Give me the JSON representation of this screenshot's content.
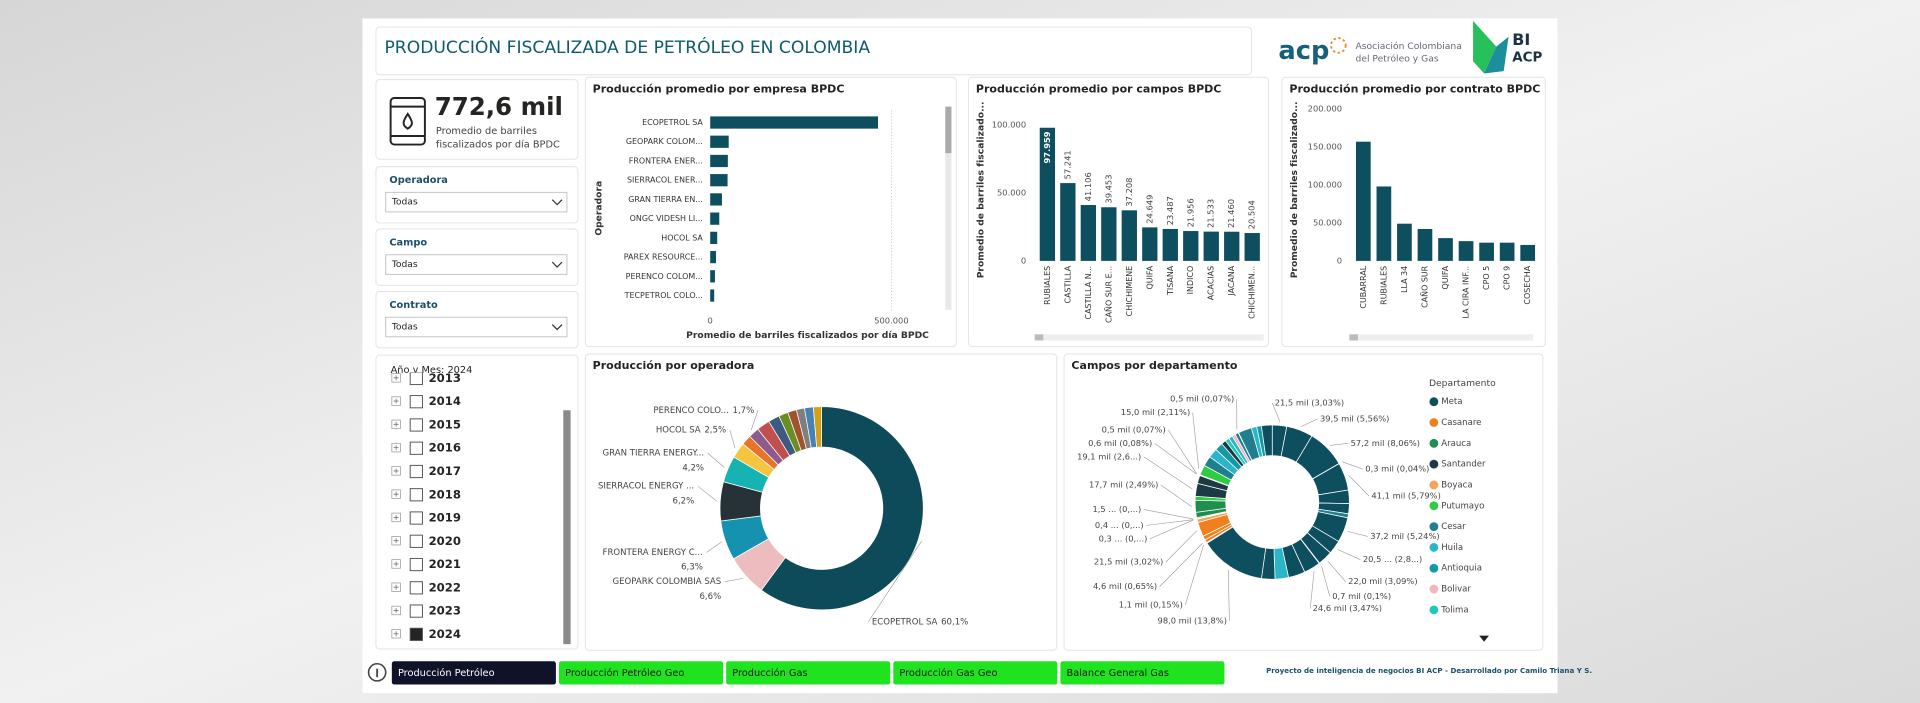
{
  "header": {
    "title": "PRODUCCIÓN FISCALIZADA DE PETRÓLEO EN COLOMBIA",
    "logo_acp": "acp",
    "logo_acp_name": [
      "Asociación Colombiana",
      "del Petróleo y Gas"
    ],
    "logo_bi": [
      "BI",
      "ACP"
    ]
  },
  "kpi": {
    "value": "772,6 mil",
    "label": [
      "Promedio de barriles",
      "fiscalizados por día BPDC"
    ]
  },
  "filters": [
    {
      "label": "Operadora",
      "value": "Todas"
    },
    {
      "label": "Campo",
      "value": "Todas"
    },
    {
      "label": "Contrato",
      "value": "Todas"
    }
  ],
  "year_slicer": {
    "title": "Año y Mes: 2024",
    "items": [
      {
        "label": "2013",
        "checked": false
      },
      {
        "label": "2014",
        "checked": false
      },
      {
        "label": "2015",
        "checked": false
      },
      {
        "label": "2016",
        "checked": false
      },
      {
        "label": "2017",
        "checked": false
      },
      {
        "label": "2018",
        "checked": false
      },
      {
        "label": "2019",
        "checked": false
      },
      {
        "label": "2020",
        "checked": false
      },
      {
        "label": "2021",
        "checked": false
      },
      {
        "label": "2022",
        "checked": false
      },
      {
        "label": "2023",
        "checked": false
      },
      {
        "label": "2024",
        "checked": true
      }
    ]
  },
  "chart_data": [
    {
      "type": "bar",
      "orientation": "horizontal",
      "title": "Producción promedio por empresa BPDC",
      "categories": [
        "ECOPETROL SA",
        "GEOPARK COLOM...",
        "FRONTERA ENER...",
        "SIERRACOL ENER...",
        "GRAN TIERRA EN...",
        "ONGC VIDESH LI...",
        "HOCOL SA",
        "PAREX RESOURCE...",
        "PERENCO COLOM...",
        "TECPETROL COLO..."
      ],
      "values": [
        463000,
        51000,
        48700,
        47900,
        32400,
        25000,
        19300,
        16000,
        13100,
        11000
      ],
      "color": "#0e4f5f",
      "xlim": [
        0,
        600000
      ],
      "xticks": [
        0,
        {
          "value": 500000,
          "label": "500.000"
        }
      ],
      "xlabel": "Promedio de barriles fiscalizados por día BPDC",
      "ylabel": "Operadora",
      "grid": true
    },
    {
      "type": "bar",
      "title": "Producción promedio por campos BPDC",
      "categories": [
        "RUBIALES",
        "CASTILLA",
        "CASTILLA N...",
        "CAÑO SUR E...",
        "CHICHIMENE",
        "QUIFA",
        "TISANA",
        "INDICO",
        "ACACIAS",
        "JACANA",
        "CHICHIMEN..."
      ],
      "values": [
        97959,
        57241,
        41106,
        39453,
        37208,
        24649,
        23487,
        21956,
        21533,
        21460,
        20504
      ],
      "value_labels": [
        "97.959",
        "57.241",
        "41.106",
        "39.453",
        "37.208",
        "24.649",
        "23.487",
        "21.956",
        "21.533",
        "21.460",
        "20.504"
      ],
      "color": "#0e4f5f",
      "ylim": [
        0,
        110000
      ],
      "yticks": [
        0,
        {
          "value": 50000,
          "label": "50.000"
        },
        {
          "value": 100000,
          "label": "100.000"
        }
      ],
      "ylabel": "Promedio de barriles fiscalizado...",
      "grid": false
    },
    {
      "type": "bar",
      "title": "Producción promedio por contrato BPDC",
      "categories": [
        "CUBARRAL",
        "RUBIALES",
        "LLA 34",
        "CAÑO SUR",
        "QUIFA",
        "LA CIRA INF...",
        "CPO 5",
        "CPO 9",
        "COSECHA"
      ],
      "values": [
        157000,
        98000,
        49000,
        42000,
        30000,
        26000,
        24000,
        24000,
        21000
      ],
      "color": "#0e4f5f",
      "ylim": [
        0,
        200000
      ],
      "yticks": [
        0,
        {
          "value": 50000,
          "label": "50.000"
        },
        {
          "value": 100000,
          "label": "100.000"
        },
        {
          "value": 150000,
          "label": "150.000"
        },
        {
          "value": 200000,
          "label": "200.000"
        }
      ],
      "ylabel": "Promedio de barriles fiscalizado...",
      "grid": false
    },
    {
      "type": "pie",
      "donut": true,
      "title": "Producción por operadora",
      "categories": [
        "ECOPETROL SA",
        "GEOPARK COLOMBIA SAS",
        "FRONTERA ENERGY C...",
        "SIERRACOL ENERGY ...",
        "GRAN TIERRA ENERGY...",
        "HOCOL SA",
        null,
        "PERENCO COLO...",
        null,
        null,
        null,
        null,
        null,
        null,
        null
      ],
      "values": [
        60.1,
        6.6,
        6.3,
        6.2,
        4.2,
        2.5,
        1.6,
        1.7,
        2.1,
        1.8,
        1.5,
        1.4,
        1.3,
        1.4,
        1.3
      ],
      "value_labels": [
        "60,1%",
        "6,6%",
        "6,3%",
        "6,2%",
        "4,2%",
        "2,5%",
        null,
        "1,7%",
        null,
        null,
        null,
        null,
        null,
        null,
        null
      ],
      "colors": [
        "#0d4a5a",
        "#ecbcbf",
        "#1592b0",
        "#263238",
        "#17b3b3",
        "#f5c542",
        "#e8742a",
        "#8c5a8c",
        "#c0504d",
        "#3d5a80",
        "#6b8e23",
        "#a0522d",
        "#7f7f7f",
        "#4682b4",
        "#d4a017"
      ]
    },
    {
      "type": "pie",
      "donut": true,
      "title": "Campos por departamento",
      "values": [
        21.5,
        39.5,
        57.2,
        0.3,
        41.1,
        20,
        15,
        6,
        37.2,
        20.5,
        22.0,
        0.7,
        24.6,
        25,
        20,
        20,
        98.0,
        1.1,
        4.6,
        6,
        21.5,
        5,
        0.3,
        0.4,
        1.5,
        8,
        17.7,
        6,
        19.1,
        12,
        0.6,
        0.5,
        15.0,
        15,
        14,
        12,
        7,
        6,
        6,
        5,
        5,
        0.5,
        20,
        8,
        7,
        16
      ],
      "value_labels": [
        "21,5 mil (3,03%)",
        "39,5 mil (5,56%)",
        "57,2 mil (8,06%)",
        "0,3 mil (0,04%)",
        "41,1 mil (5,79%)",
        null,
        null,
        null,
        "37,2 mil (5,24%)",
        "20,5 ... (2,8...)",
        "22,0 mil (3,09%)",
        "0,7 mil (0,1%)",
        "24,6 mil (3,47%)",
        null,
        null,
        null,
        "98,0 mil (13,8%)",
        "1,1 mil (0,15%)",
        "4,6 mil (0,65%)",
        null,
        "21,5 mil (3,02%)",
        null,
        "0,3 ... (0,...)",
        "0,4 ... (0,...)",
        "1,5 ... (0,...)",
        null,
        "17,7 mil (2,49%)",
        null,
        "19,1 mil (2,6...)",
        null,
        "0,6 mil (0,08%)",
        "0,5 mil (0,07%)",
        "15,0 mil (2,11%)",
        null,
        null,
        null,
        null,
        null,
        null,
        null,
        null,
        "0,5 mil (0,07%)",
        null,
        null,
        null,
        null
      ],
      "colors": [
        "#0d4f5e",
        "#0d4f5e",
        "#0d4f5e",
        "#0d4f5e",
        "#0d4f5e",
        "#0d4f5e",
        "#0d4f5e",
        "#1f7f8f",
        "#0d4f5e",
        "#0d4f5e",
        "#0d4f5e",
        "#0d4f5e",
        "#0d4f5e",
        "#0d4f5e",
        "#2bb5c8",
        "#0d4f5e",
        "#0d4f5e",
        "#f07f1d",
        "#f07f1d",
        "#f07f1d",
        "#f07f1d",
        "#f5a25d",
        "#f07f1d",
        "#f5a25d",
        "#1e8f4e",
        "#1e8f4e",
        "#1e8f4e",
        "#2ecc40",
        "#1b3a45",
        "#1b3a45",
        "#1b3a45",
        "#1e8f4e",
        "#2ecc40",
        "#1f7f8f",
        "#2bb5c8",
        "#149aa5",
        "#1b3a45",
        "#1fc9b9",
        "#2bb5c8",
        "#f2b6bd",
        "#1f7f8f",
        "#2bb5c8",
        "#1f7f8f",
        "#2bb5c8",
        "#149aa5",
        "#0d4f5e"
      ],
      "legend": {
        "title": "Departamento",
        "items": [
          "Meta",
          "Casanare",
          "Arauca",
          "Santander",
          "Boyaca",
          "Putumayo",
          "Cesar",
          "Huila",
          "Antioquia",
          "Bolivar",
          "Tolima"
        ],
        "colors": [
          "#0d4f5e",
          "#f07f1d",
          "#1e8f4e",
          "#1b3a45",
          "#f5a25d",
          "#2ecc40",
          "#1f7f8f",
          "#2bb5c8",
          "#149aa5",
          "#f2b6bd",
          "#1fc9b9"
        ]
      }
    }
  ],
  "tabs": [
    {
      "label": "Producción Petróleo",
      "active": true
    },
    {
      "label": "Producción Petróleo Geo",
      "active": false
    },
    {
      "label": "Producción Gas",
      "active": false
    },
    {
      "label": "Producción Gas Geo",
      "active": false
    },
    {
      "label": "Balance General Gas",
      "active": false
    }
  ],
  "footer": "Proyecto de inteligencia de negocios BI ACP - Desarrollado por Camilo Triana Y S."
}
